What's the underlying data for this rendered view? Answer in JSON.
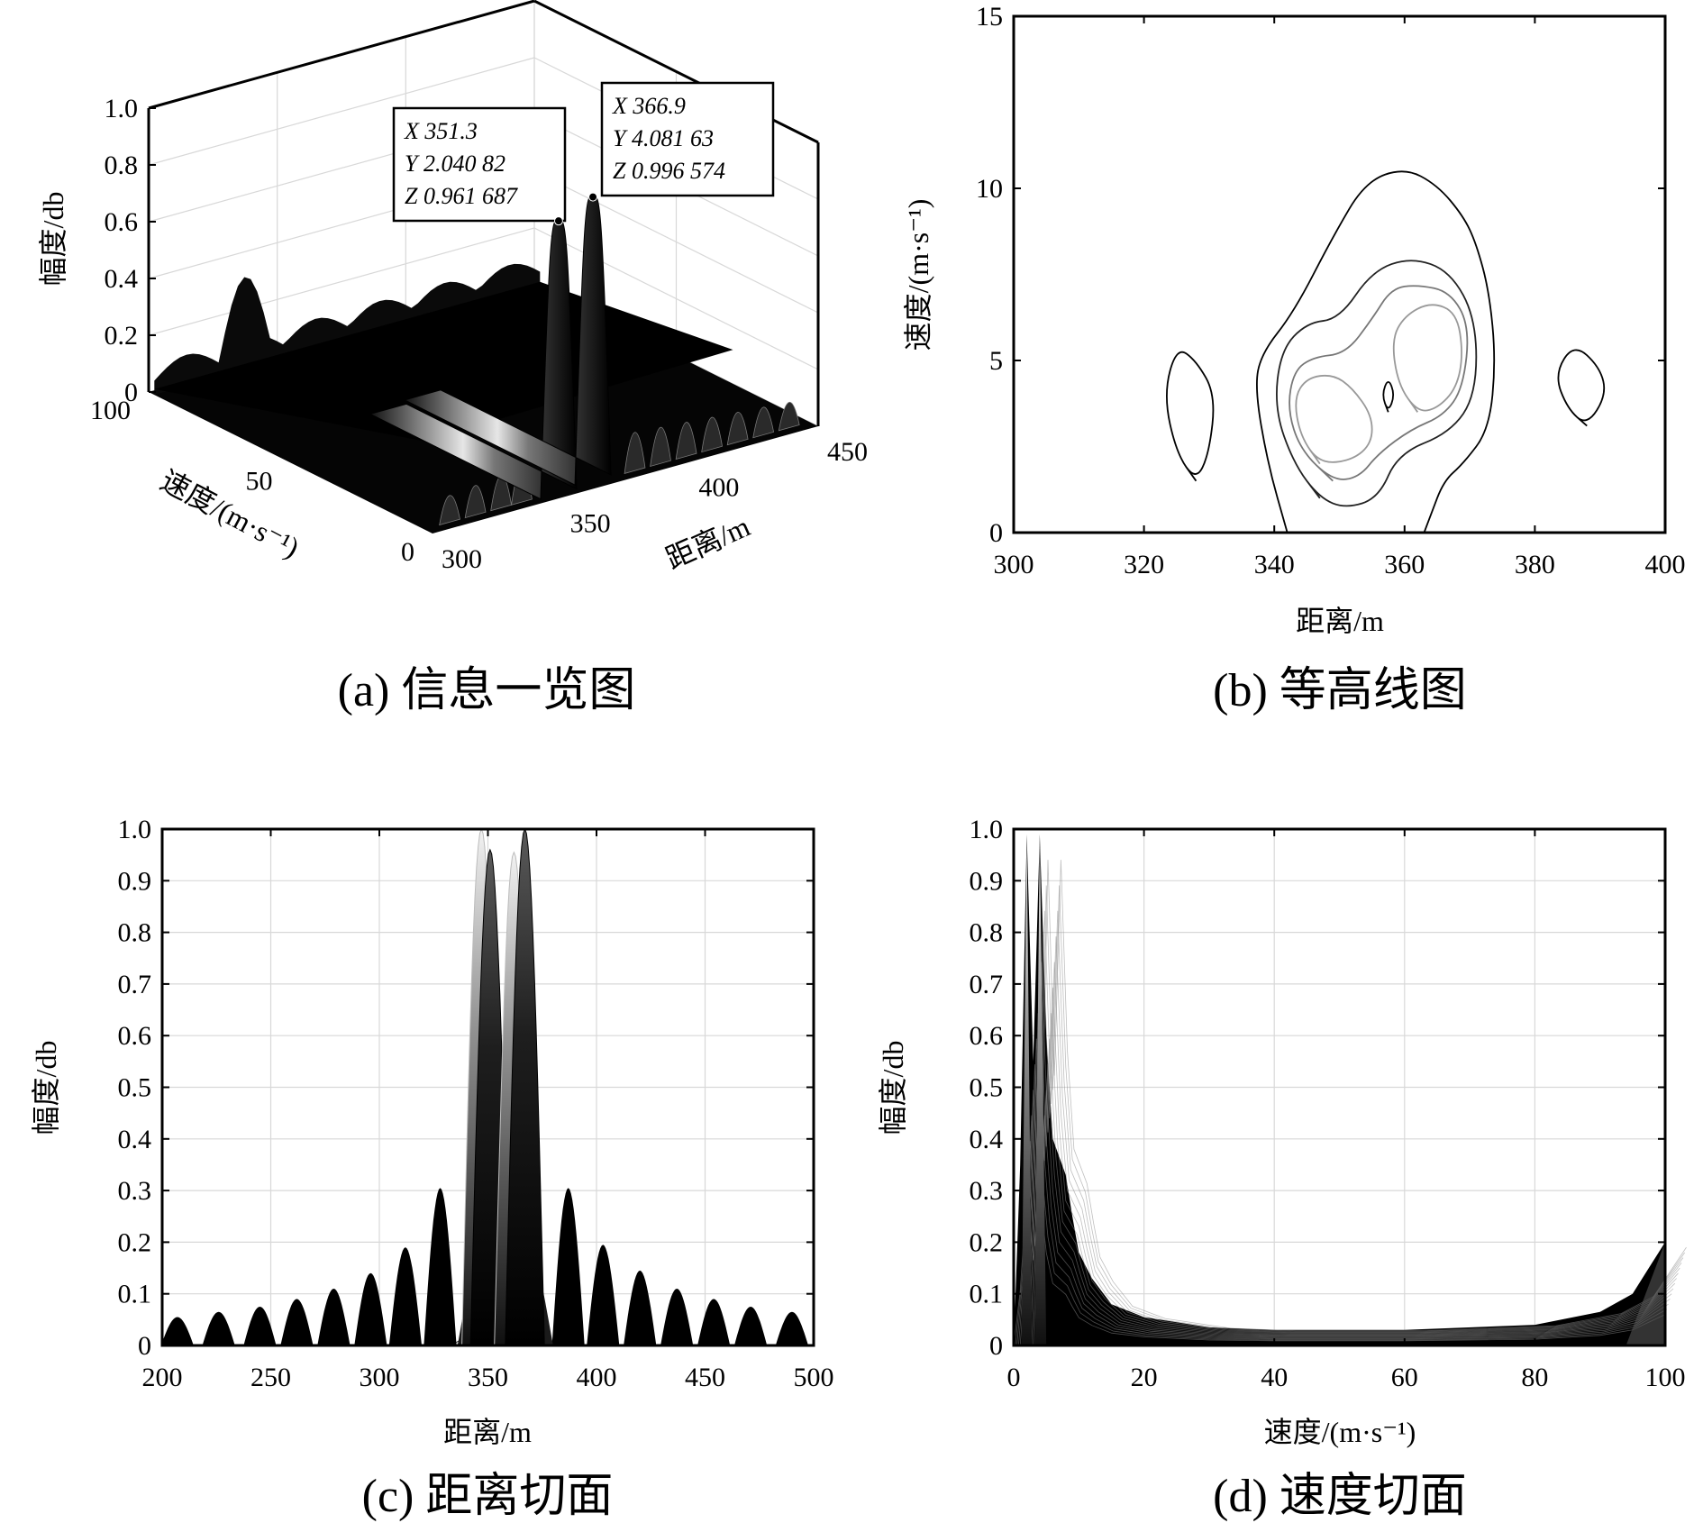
{
  "chart_data": [
    {
      "type": "surface",
      "caption": "(a) 信息一览图",
      "xlabel": "距离/m",
      "ylabel": "速度/(m·s⁻¹)",
      "zlabel": "幅度/db",
      "xlim": [
        300,
        450
      ],
      "ylim": [
        0,
        100
      ],
      "zlim": [
        0,
        1.0
      ],
      "xticks": [
        "300",
        "350",
        "400",
        "450"
      ],
      "yticks": [
        "0",
        "50",
        "100"
      ],
      "zticks": [
        "0",
        "0.2",
        "0.4",
        "0.6",
        "0.8",
        "1.0"
      ],
      "peaks": [
        {
          "x": 351.3,
          "y": 2.04082,
          "z": 0.961687,
          "label_x": "X 351.3",
          "label_y": "Y 2.040 82",
          "label_z": "Z 0.961 687"
        },
        {
          "x": 366.9,
          "y": 4.08163,
          "z": 0.996574,
          "label_x": "X 366.9",
          "label_y": "Y 4.081 63",
          "label_z": "Z 0.996 574"
        }
      ],
      "grid": true
    },
    {
      "type": "contour",
      "caption": "(b) 等高线图",
      "xlabel": "距离/m",
      "ylabel": "速度/(m·s⁻¹)",
      "xlim": [
        300,
        400
      ],
      "ylim": [
        0,
        15
      ],
      "xticks": [
        "300",
        "320",
        "340",
        "360",
        "380",
        "400"
      ],
      "yticks": [
        "0",
        "5",
        "10",
        "15"
      ],
      "contours": [
        {
          "level": "outer",
          "points": [
            [
              342,
              0
            ],
            [
              339,
              2
            ],
            [
              337,
              4.2
            ],
            [
              338,
              5.2
            ],
            [
              343,
              6.4
            ],
            [
              349,
              8.6
            ],
            [
              354,
              10.2
            ],
            [
              360,
              10.6
            ],
            [
              365,
              10.1
            ],
            [
              369,
              9.2
            ],
            [
              371,
              8.4
            ],
            [
              373,
              7.0
            ],
            [
              374,
              5.0
            ],
            [
              373,
              3.0
            ],
            [
              369,
              2.0
            ],
            [
              366,
              1.5
            ],
            [
              364,
              0.5
            ],
            [
              363,
              0
            ]
          ]
        },
        {
          "level": "mid1",
          "points": [
            [
              347,
              1.0
            ],
            [
              343,
              2.0
            ],
            [
              340,
              3.6
            ],
            [
              341,
              5.3
            ],
            [
              345,
              6.1
            ],
            [
              350,
              6.2
            ],
            [
              355,
              7.6
            ],
            [
              361,
              8.0
            ],
            [
              367,
              7.6
            ],
            [
              371,
              6.2
            ],
            [
              371,
              4.0
            ],
            [
              367,
              2.9
            ],
            [
              359,
              2.3
            ],
            [
              356,
              1.0
            ],
            [
              351,
              0.7
            ]
          ]
        },
        {
          "level": "mid2",
          "points": [
            [
              349,
              1.5
            ],
            [
              344,
              2.4
            ],
            [
              342,
              3.6
            ],
            [
              343,
              4.7
            ],
            [
              346,
              5.1
            ],
            [
              351,
              5.2
            ],
            [
              355,
              6.2
            ],
            [
              358,
              7.1
            ],
            [
              362,
              7.2
            ],
            [
              367,
              7.0
            ],
            [
              370,
              6.0
            ],
            [
              369,
              4.2
            ],
            [
              366,
              3.4
            ],
            [
              361,
              3.0
            ],
            [
              356,
              2.3
            ],
            [
              353,
              1.6
            ]
          ]
        },
        {
          "level": "inner-left",
          "points": [
            [
              347,
              2.0
            ],
            [
              344,
              2.8
            ],
            [
              343,
              3.9
            ],
            [
              345,
              4.5
            ],
            [
              349,
              4.6
            ],
            [
              352,
              4.2
            ],
            [
              355,
              3.4
            ],
            [
              355,
              2.6
            ],
            [
              352,
              2.1
            ]
          ]
        },
        {
          "level": "inner-right",
          "points": [
            [
              362,
              3.5
            ],
            [
              359,
              4.3
            ],
            [
              358,
              5.6
            ],
            [
              360,
              6.3
            ],
            [
              364,
              6.7
            ],
            [
              368,
              6.4
            ],
            [
              369,
              5.2
            ],
            [
              368,
              4.2
            ],
            [
              365,
              3.6
            ]
          ]
        },
        {
          "level": "peak",
          "points": [
            [
              357.5,
              3.5
            ],
            [
              356.5,
              4.0
            ],
            [
              357.5,
              4.5
            ],
            [
              358.5,
              4.0
            ]
          ]
        },
        {
          "level": "side-left",
          "points": [
            [
              328,
              1.5
            ],
            [
              325,
              2.3
            ],
            [
              323,
              4.0
            ],
            [
              325,
              5.4
            ],
            [
              328,
              5.0
            ],
            [
              331,
              4.0
            ],
            [
              330,
              2.3
            ]
          ]
        },
        {
          "level": "side-right",
          "points": [
            [
              388,
              3.1
            ],
            [
              385,
              3.6
            ],
            [
              383,
              4.6
            ],
            [
              386,
              5.5
            ],
            [
              390,
              4.8
            ],
            [
              391,
              4.0
            ]
          ]
        }
      ],
      "grid": false
    },
    {
      "type": "area",
      "caption": "(c) 距离切面",
      "xlabel": "距离/m",
      "ylabel": "幅度/db",
      "xlim": [
        200,
        500
      ],
      "ylim": [
        0,
        1.0
      ],
      "xticks": [
        "200",
        "250",
        "300",
        "350",
        "400",
        "450",
        "500"
      ],
      "yticks": [
        "0",
        "0.1",
        "0.2",
        "0.3",
        "0.4",
        "0.5",
        "0.6",
        "0.7",
        "0.8",
        "0.9",
        "1.0"
      ],
      "sidelobes": [
        {
          "x": 207,
          "y": 0.055
        },
        {
          "x": 226,
          "y": 0.065
        },
        {
          "x": 245,
          "y": 0.075
        },
        {
          "x": 262,
          "y": 0.09
        },
        {
          "x": 279,
          "y": 0.11
        },
        {
          "x": 296,
          "y": 0.14
        },
        {
          "x": 312,
          "y": 0.19
        },
        {
          "x": 328,
          "y": 0.305
        },
        {
          "x": 387,
          "y": 0.305
        },
        {
          "x": 403,
          "y": 0.195
        },
        {
          "x": 420,
          "y": 0.145
        },
        {
          "x": 437,
          "y": 0.11
        },
        {
          "x": 454,
          "y": 0.09
        },
        {
          "x": 471,
          "y": 0.075
        },
        {
          "x": 490,
          "y": 0.065
        }
      ],
      "mainlobes": [
        {
          "x": 347,
          "y": 1.0,
          "shade": "light"
        },
        {
          "x": 351,
          "y": 0.96,
          "shade": "dark"
        },
        {
          "x": 362,
          "y": 0.955,
          "shade": "light"
        },
        {
          "x": 367,
          "y": 1.0,
          "shade": "dark"
        }
      ],
      "grid": true
    },
    {
      "type": "area",
      "caption": "(d) 速度切面",
      "xlabel": "速度/(m·s⁻¹)",
      "ylabel": "幅度/db",
      "xlim": [
        0,
        100
      ],
      "ylim": [
        0,
        1.0
      ],
      "xticks": [
        "0",
        "20",
        "40",
        "60",
        "80",
        "100"
      ],
      "yticks": [
        "0",
        "0.1",
        "0.2",
        "0.3",
        "0.4",
        "0.5",
        "0.6",
        "0.7",
        "0.8",
        "0.9",
        "1.0"
      ],
      "envelope": [
        [
          0,
          0.0
        ],
        [
          1,
          0.35
        ],
        [
          2,
          0.99
        ],
        [
          3,
          0.55
        ],
        [
          4,
          0.99
        ],
        [
          5,
          0.6
        ],
        [
          6,
          0.4
        ],
        [
          8,
          0.33
        ],
        [
          9,
          0.25
        ],
        [
          10,
          0.18
        ],
        [
          12,
          0.13
        ],
        [
          15,
          0.08
        ],
        [
          20,
          0.055
        ],
        [
          30,
          0.035
        ],
        [
          40,
          0.03
        ],
        [
          60,
          0.03
        ],
        [
          80,
          0.04
        ],
        [
          90,
          0.065
        ],
        [
          95,
          0.1
        ],
        [
          98,
          0.16
        ],
        [
          100,
          0.2
        ]
      ],
      "grid": true
    }
  ]
}
